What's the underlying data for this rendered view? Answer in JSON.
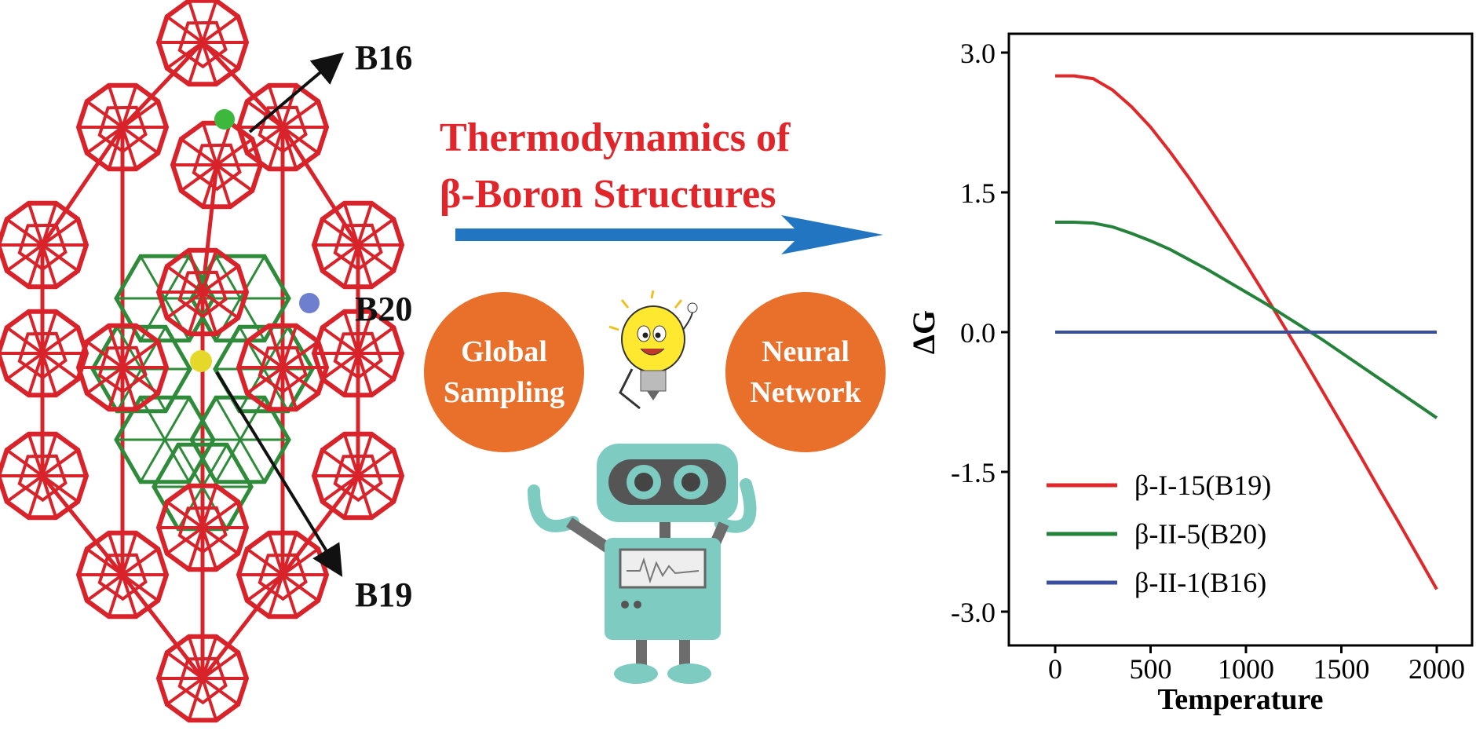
{
  "structure": {
    "labels": {
      "b16": "B16",
      "b20": "B20",
      "b19": "B19"
    },
    "colors": {
      "cage": "#d8232a",
      "inner": "#2e8b3a",
      "b16_atom": "#3cb83c",
      "b20_atom": "#6f7fd0",
      "b19_atom": "#e6d82a"
    }
  },
  "title": {
    "line1": "Thermodynamics of",
    "line2": "β-Boron Structures",
    "color": "#e0262a"
  },
  "methods": {
    "left": [
      "Global",
      "Sampling"
    ],
    "right": [
      "Neural",
      "Network"
    ],
    "color": "#e8702a"
  },
  "arrow_color": "#2275c0",
  "chart_data": {
    "type": "line",
    "xlabel": "Temperature",
    "ylabel": "ΔG",
    "xlim": [
      -100,
      2100
    ],
    "ylim": [
      -3.2,
      3.2
    ],
    "xticks": [
      0,
      500,
      1000,
      1500,
      2000
    ],
    "yticks": [
      3.0,
      1.5,
      0.0,
      -1.5,
      -3.0
    ],
    "ytick_labels": [
      "3.0",
      "1.5",
      "0.0",
      "-1.5",
      "-3.0"
    ],
    "legend_position": "bottom-left",
    "series": [
      {
        "name": "β-I-15(B19)",
        "color": "#e0282a",
        "x": [
          0,
          100,
          200,
          300,
          400,
          500,
          600,
          700,
          800,
          900,
          1000,
          1100,
          1200,
          1300,
          1400,
          1500,
          1600,
          1700,
          1800,
          1900,
          2000
        ],
        "y": [
          2.75,
          2.75,
          2.72,
          2.6,
          2.42,
          2.2,
          1.94,
          1.66,
          1.36,
          1.05,
          0.73,
          0.4,
          0.06,
          -0.28,
          -0.63,
          -0.98,
          -1.33,
          -1.69,
          -2.04,
          -2.4,
          -2.76
        ]
      },
      {
        "name": "β-II-5(B20)",
        "color": "#24823a",
        "x": [
          0,
          100,
          200,
          300,
          400,
          500,
          600,
          700,
          800,
          900,
          1000,
          1100,
          1200,
          1300,
          1400,
          1500,
          1600,
          1700,
          1800,
          1900,
          2000
        ],
        "y": [
          1.18,
          1.18,
          1.17,
          1.13,
          1.06,
          0.98,
          0.89,
          0.78,
          0.67,
          0.55,
          0.43,
          0.31,
          0.18,
          0.05,
          -0.08,
          -0.22,
          -0.36,
          -0.5,
          -0.64,
          -0.78,
          -0.92
        ]
      },
      {
        "name": "β-II-1(B16)",
        "color": "#3b4fa0",
        "x": [
          0,
          2000
        ],
        "y": [
          0,
          0
        ]
      }
    ]
  }
}
